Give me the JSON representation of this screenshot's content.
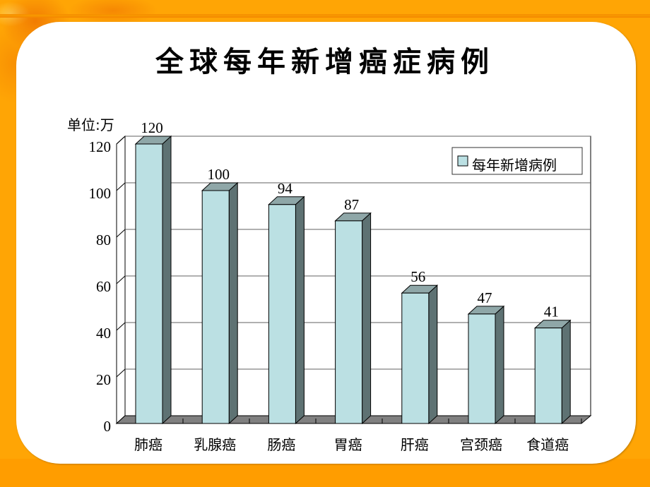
{
  "slide": {
    "title": "全球每年新增癌症病例"
  },
  "chart_data": {
    "type": "bar",
    "style": "3d-clustered-column",
    "title": "全球每年新增癌症病例",
    "xlabel": "",
    "ylabel": "单位:万",
    "categories": [
      "肺癌",
      "乳腺癌",
      "肠癌",
      "胃癌",
      "肝癌",
      "宫颈癌",
      "食道癌"
    ],
    "series": [
      {
        "name": "每年新增病例",
        "values": [
          120,
          100,
          94,
          87,
          56,
          47,
          41
        ]
      }
    ],
    "values": [
      120,
      100,
      94,
      87,
      56,
      47,
      41
    ],
    "data_labels": [
      "120",
      "100",
      "94",
      "87",
      "56",
      "47",
      "41"
    ],
    "yticks": [
      0,
      20,
      40,
      60,
      80,
      100,
      120
    ],
    "ylim": [
      0,
      120
    ],
    "grid": true,
    "legend": {
      "position": "upper-right-inside",
      "entries": [
        "每年新增病例"
      ]
    },
    "colors": {
      "bar_front": "#BBE0E3",
      "bar_top": "#8FA7A8",
      "bar_side": "#5E7273",
      "floor": "#808080",
      "gridline": "#606060"
    }
  }
}
